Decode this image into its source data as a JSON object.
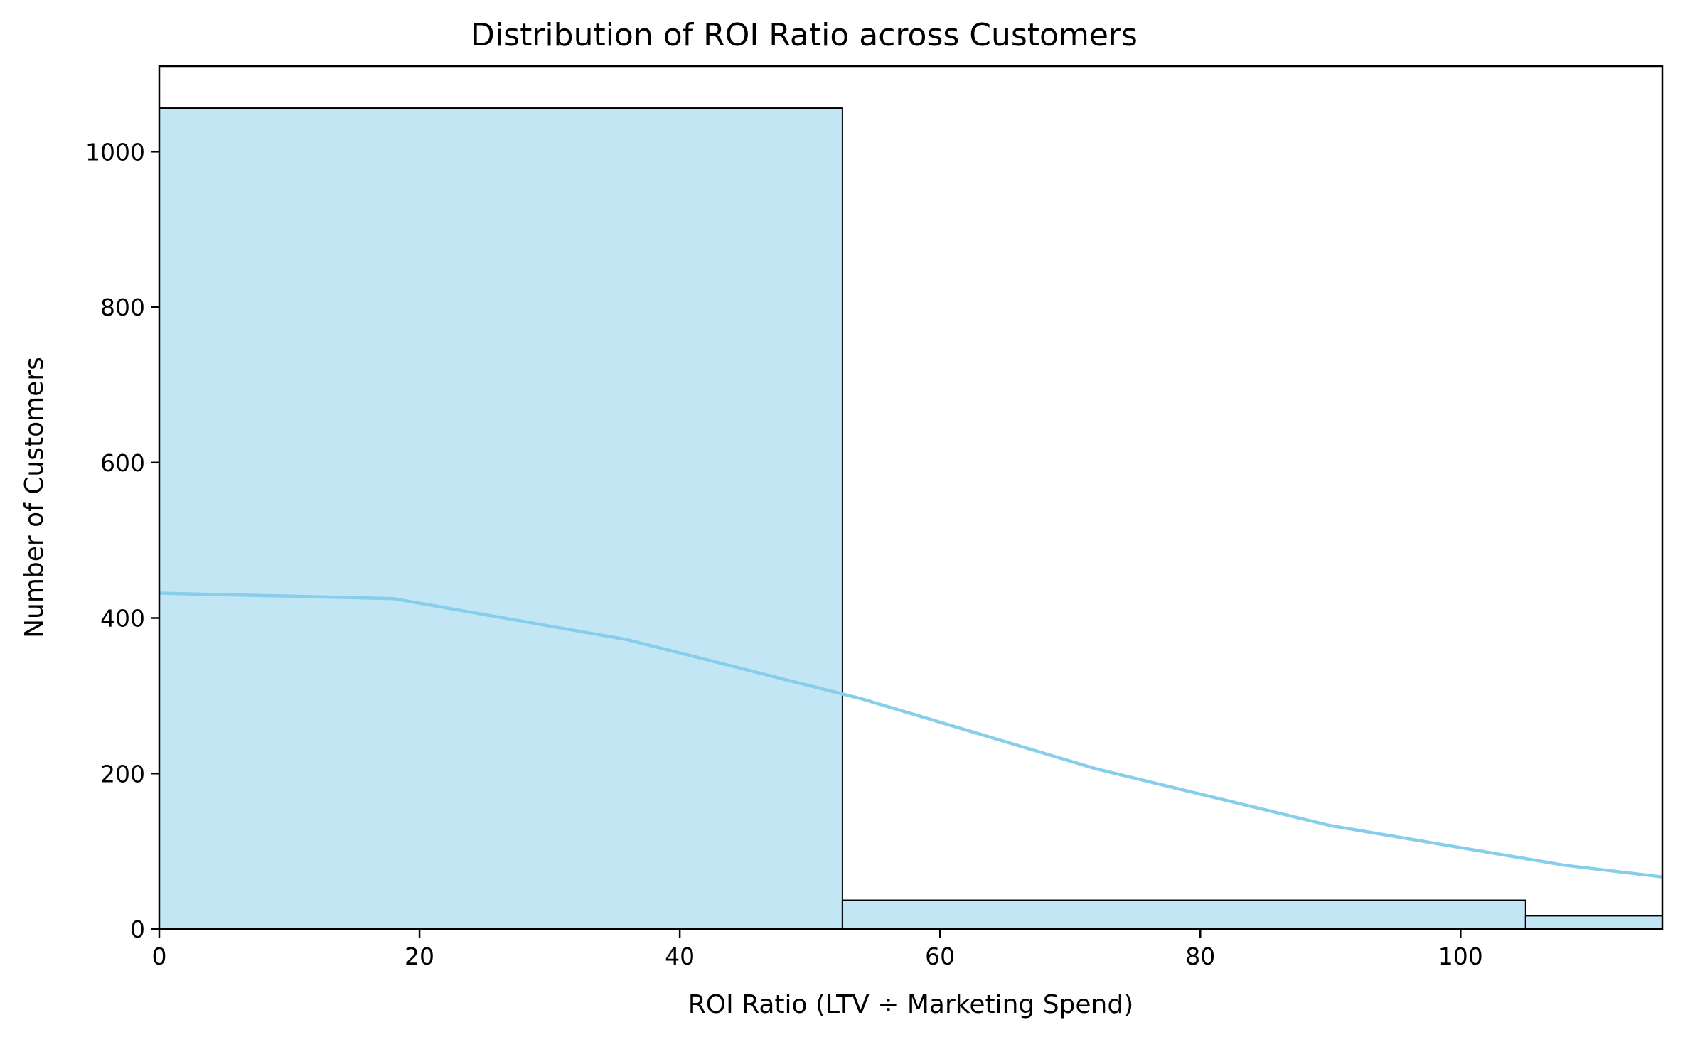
{
  "chart_data": {
    "type": "bar",
    "subtype": "histogram-with-kde",
    "title": "Distribution of ROI Ratio across Customers",
    "xlabel": "ROI Ratio (LTV ÷ Marketing Spend)",
    "ylabel": "Number of Customers",
    "xlim": [
      0,
      115.5
    ],
    "ylim": [
      0,
      1110
    ],
    "xticks": [
      0,
      20,
      40,
      60,
      80,
      100
    ],
    "yticks": [
      0,
      200,
      400,
      600,
      800,
      1000
    ],
    "grid": false,
    "bins": [
      {
        "x0": 0,
        "x1": 52.5,
        "count": 1056
      },
      {
        "x0": 52.5,
        "x1": 105,
        "count": 37
      },
      {
        "x0": 105,
        "x1": 115.5,
        "count": 17
      }
    ],
    "kde": {
      "x": [
        0,
        18,
        36,
        54,
        72,
        90,
        108,
        115.5
      ],
      "y": [
        432,
        425,
        372,
        296,
        206,
        133,
        82,
        67
      ]
    },
    "colors": {
      "bar_fill": "#87ceeb",
      "bar_fill_opacity": 0.5,
      "bar_edge": "#000000",
      "kde_line": "#87ceeb"
    }
  }
}
